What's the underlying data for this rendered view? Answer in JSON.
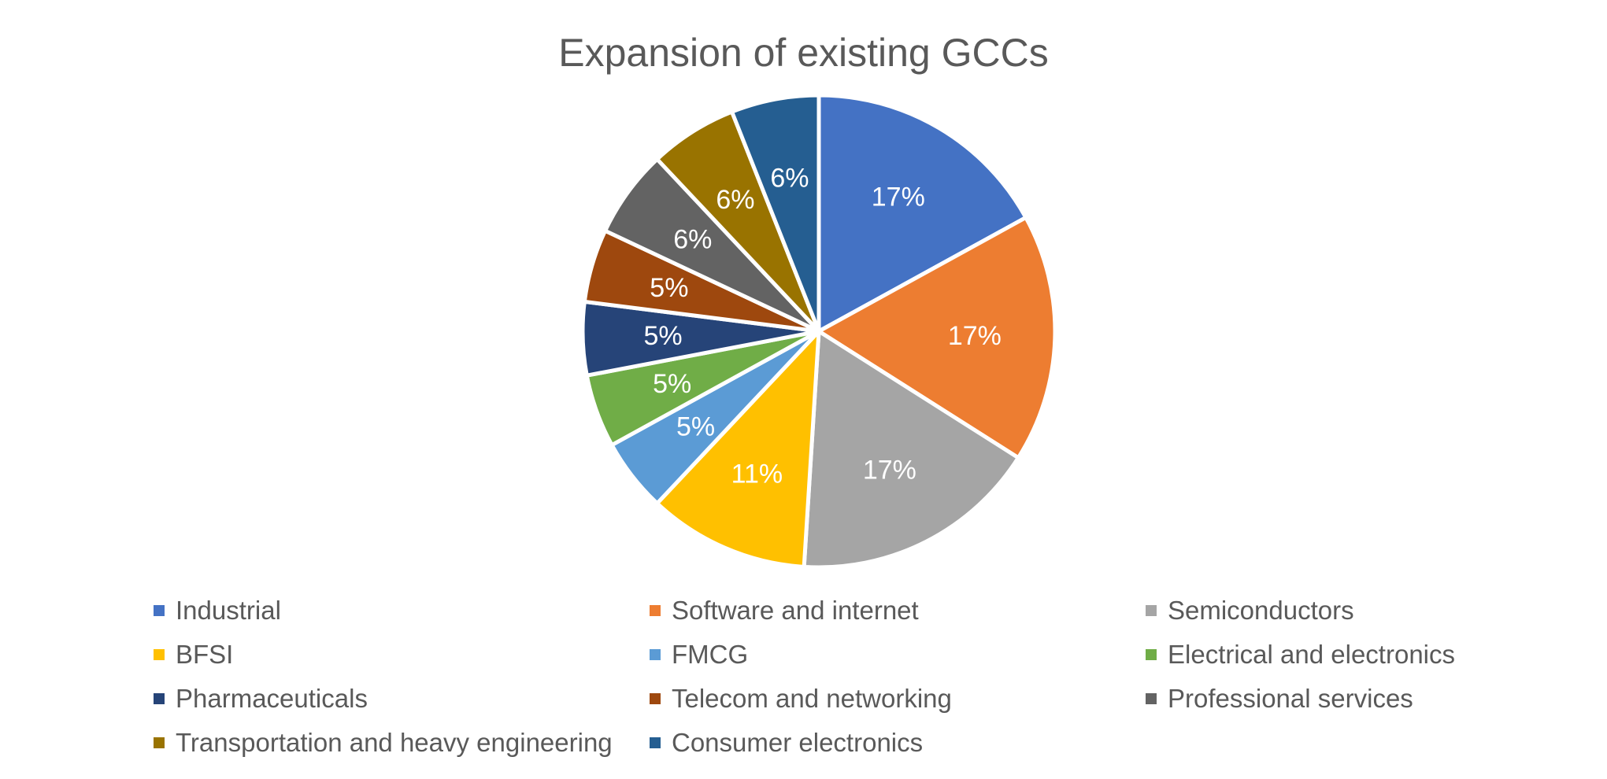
{
  "chart_data": {
    "type": "pie",
    "title": "Expansion of existing GCCs",
    "series": [
      {
        "categories": [
          "Industrial",
          "Software and internet",
          "Semiconductors",
          "BFSI",
          "FMCG",
          "Electrical and electronics",
          "Pharmaceuticals",
          "Telecom and networking",
          "Professional services",
          "Transportation and heavy engineering",
          "Consumer electronics"
        ],
        "values": [
          17,
          17,
          17,
          11,
          5,
          5,
          5,
          5,
          6,
          6,
          6
        ],
        "data_labels": [
          "17%",
          "17%",
          "17%",
          "11%",
          "5%",
          "5%",
          "5%",
          "5%",
          "6%",
          "6%",
          "6%"
        ]
      }
    ],
    "colors": [
      "#4472C4",
      "#ED7D31",
      "#A5A5A5",
      "#FFC000",
      "#5B9BD5",
      "#70AD47",
      "#264478",
      "#9E480E",
      "#636363",
      "#997300",
      "#255E91"
    ],
    "legend_position": "bottom"
  }
}
